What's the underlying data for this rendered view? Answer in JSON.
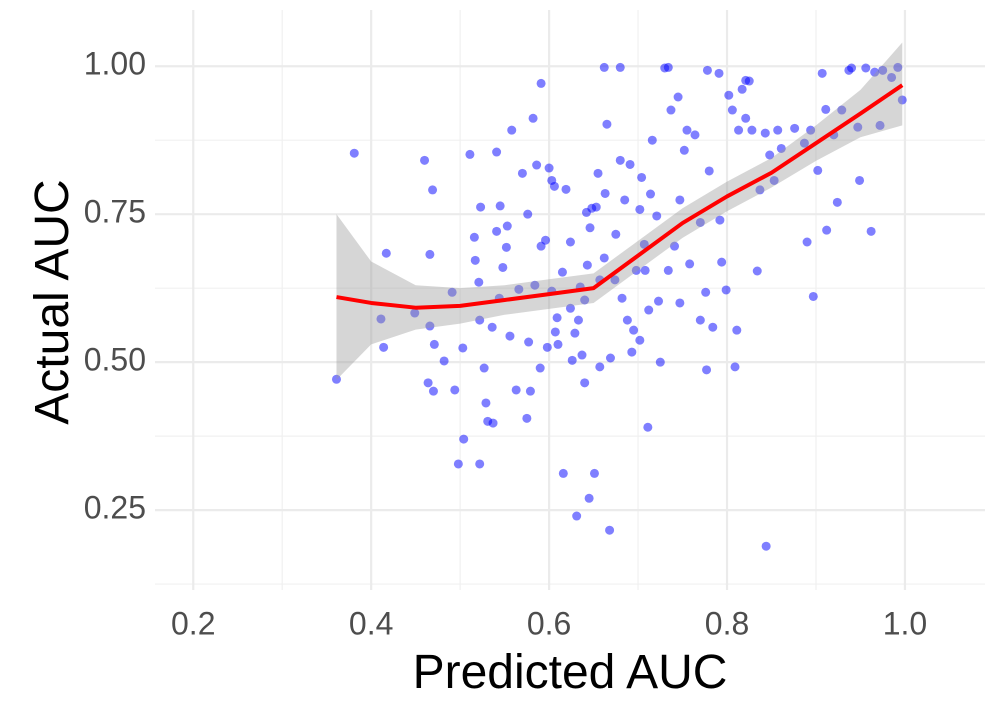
{
  "chart_data": {
    "type": "scatter",
    "x_label": "Predicted AUC",
    "y_label": "Actual AUC",
    "xlim": [
      0.157,
      1.09
    ],
    "ylim": [
      0.115,
      1.095
    ],
    "xticks": [
      0.2,
      0.4,
      0.6,
      0.8,
      {
        "value": 1.0,
        "label": "1.0"
      }
    ],
    "yticks": [
      {
        "value": 0.25,
        "label": "0.25"
      },
      {
        "value": 0.5,
        "label": "0.50"
      },
      0.75,
      {
        "value": 1.0,
        "label": "1.00"
      }
    ],
    "x_minor_grid": [
      0.3,
      0.5,
      0.7,
      0.9
    ],
    "y_minor_grid": [
      0.125,
      0.375,
      0.625,
      0.875
    ],
    "grid": true,
    "series": [
      {
        "color": "#0000ff",
        "x": [
          0.361,
          0.381,
          0.417,
          0.411,
          0.414,
          0.449,
          0.46,
          0.469,
          0.466,
          0.466,
          0.464,
          0.471,
          0.47,
          0.482,
          0.491,
          0.494,
          0.498,
          0.503,
          0.504,
          0.511,
          0.516,
          0.517,
          0.521,
          0.522,
          0.523,
          0.522,
          0.527,
          0.529,
          0.531,
          0.537,
          0.536,
          0.541,
          0.541,
          0.544,
          0.545,
          0.548,
          0.552,
          0.553,
          0.556,
          0.558,
          0.563,
          0.566,
          0.57,
          0.575,
          0.576,
          0.577,
          0.579,
          0.582,
          0.584,
          0.586,
          0.59,
          0.591,
          0.591,
          0.596,
          0.598,
          0.6,
          0.603,
          0.603,
          0.606,
          0.609,
          0.61,
          0.615,
          0.616,
          0.619,
          0.624,
          0.626,
          0.629,
          0.631,
          0.633,
          0.635,
          0.637,
          0.64,
          0.642,
          0.645,
          0.646,
          0.648,
          0.651,
          0.653,
          0.655,
          0.657,
          0.662,
          0.662,
          0.663,
          0.665,
          0.668,
          0.669,
          0.675,
          0.68,
          0.68,
          0.682,
          0.688,
          0.691,
          0.693,
          0.698,
          0.702,
          0.704,
          0.707,
          0.711,
          0.714,
          0.716,
          0.721,
          0.723,
          0.725,
          0.73,
          0.734,
          0.737,
          0.741,
          0.745,
          0.747,
          0.752,
          0.755,
          0.758,
          0.764,
          0.77,
          0.776,
          0.777,
          0.778,
          0.78,
          0.784,
          0.791,
          0.792,
          0.794,
          0.799,
          0.802,
          0.806,
          0.809,
          0.811,
          0.813,
          0.817,
          0.821,
          0.821,
          0.825,
          0.828,
          0.834,
          0.837,
          0.843,
          0.844,
          0.848,
          0.853,
          0.857,
          0.861,
          0.876,
          0.887,
          0.89,
          0.894,
          0.897,
          0.902,
          0.907,
          0.911,
          0.912,
          0.92,
          0.924,
          0.929,
          0.937,
          0.94,
          0.947,
          0.949,
          0.956,
          0.962,
          0.966,
          0.972,
          0.975,
          0.985,
          0.992,
          0.997,
          0.624,
          0.643,
          0.657,
          0.674,
          0.695,
          0.712,
          0.734,
          0.77,
          0.607,
          0.64,
          0.702,
          0.747,
          0.685,
          0.708
        ],
        "y": [
          0.471,
          0.853,
          0.684,
          0.573,
          0.525,
          0.583,
          0.841,
          0.791,
          0.682,
          0.561,
          0.465,
          0.53,
          0.451,
          0.502,
          0.618,
          0.453,
          0.328,
          0.524,
          0.37,
          0.851,
          0.711,
          0.672,
          0.635,
          0.571,
          0.762,
          0.328,
          0.49,
          0.431,
          0.4,
          0.397,
          0.559,
          0.855,
          0.721,
          0.608,
          0.764,
          0.66,
          0.694,
          0.73,
          0.544,
          0.892,
          0.453,
          0.623,
          0.819,
          0.405,
          0.75,
          0.534,
          0.451,
          0.912,
          0.63,
          0.833,
          0.49,
          0.971,
          0.696,
          0.706,
          0.525,
          0.828,
          0.807,
          0.62,
          0.797,
          0.575,
          0.53,
          0.652,
          0.312,
          0.792,
          0.703,
          0.503,
          0.549,
          0.24,
          0.571,
          0.627,
          0.512,
          0.465,
          0.753,
          0.27,
          0.727,
          0.76,
          0.312,
          0.762,
          0.819,
          0.492,
          0.676,
          0.998,
          0.785,
          0.902,
          0.216,
          0.507,
          0.716,
          0.998,
          0.841,
          0.608,
          0.571,
          0.834,
          0.517,
          0.655,
          0.758,
          0.812,
          0.699,
          0.39,
          0.784,
          0.875,
          0.747,
          0.603,
          0.5,
          0.997,
          0.998,
          0.926,
          0.696,
          0.948,
          0.6,
          0.858,
          0.892,
          0.666,
          0.884,
          0.736,
          0.618,
          0.487,
          0.993,
          0.823,
          0.559,
          0.988,
          0.74,
          0.669,
          0.622,
          0.951,
          0.926,
          0.492,
          0.554,
          0.892,
          0.961,
          0.912,
          0.976,
          0.975,
          0.892,
          0.654,
          0.791,
          0.887,
          0.189,
          0.85,
          0.807,
          0.892,
          0.861,
          0.895,
          0.87,
          0.703,
          0.892,
          0.611,
          0.824,
          0.988,
          0.927,
          0.723,
          0.884,
          0.77,
          0.926,
          0.993,
          0.997,
          0.897,
          0.807,
          0.997,
          0.721,
          0.99,
          0.9,
          0.993,
          0.981,
          0.998,
          0.943,
          0.591,
          0.664,
          0.639,
          0.639,
          0.554,
          0.588,
          0.655,
          0.571,
          0.551,
          0.605,
          0.537,
          0.774,
          0.774,
          0.655
        ]
      }
    ],
    "smooth": {
      "color": "#ff0000",
      "band_color": "#999999",
      "x": [
        0.361,
        0.4,
        0.45,
        0.5,
        0.55,
        0.6,
        0.65,
        0.7,
        0.75,
        0.8,
        0.85,
        0.9,
        0.95,
        0.997
      ],
      "y": [
        0.61,
        0.6,
        0.592,
        0.595,
        0.605,
        0.615,
        0.625,
        0.68,
        0.735,
        0.78,
        0.82,
        0.87,
        0.92,
        0.968
      ],
      "lower": [
        0.47,
        0.53,
        0.555,
        0.565,
        0.58,
        0.59,
        0.6,
        0.655,
        0.71,
        0.755,
        0.795,
        0.84,
        0.88,
        0.9
      ],
      "upper": [
        0.75,
        0.67,
        0.63,
        0.625,
        0.63,
        0.64,
        0.65,
        0.705,
        0.76,
        0.805,
        0.845,
        0.9,
        0.96,
        1.04
      ]
    }
  }
}
